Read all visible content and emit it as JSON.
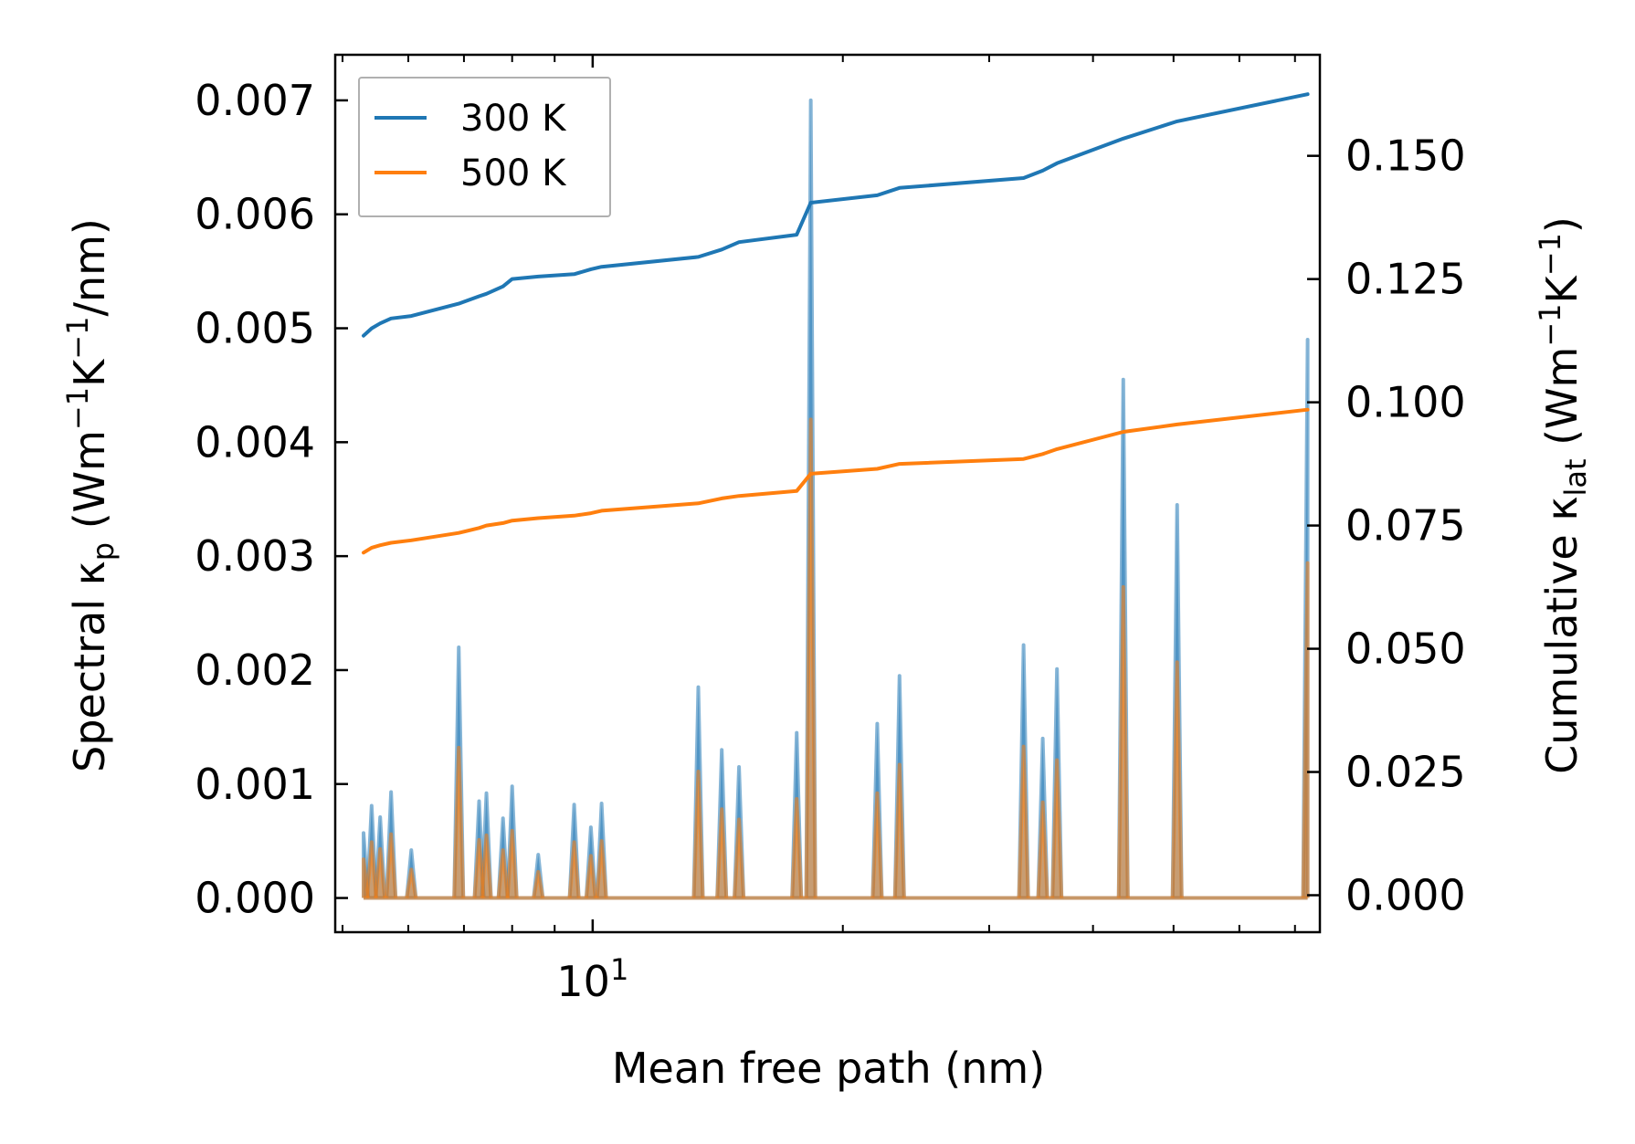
{
  "chart_data": {
    "type": "line",
    "xlabel": "Mean free path (nm)",
    "ylabel_left": {
      "prefix": "Spectral κ",
      "sub": "p",
      "units_prefix": " (Wm",
      "sup1": "−1",
      "mid": "K",
      "sup2": "−1",
      "suffix": "/nm)"
    },
    "ylabel_right": {
      "prefix": "Cumulative κ",
      "sub": "lat",
      "units_prefix": " (Wm",
      "sup1": "−1",
      "mid": "K",
      "sup2": "−1",
      "suffix": ")"
    },
    "xscale": "log",
    "xlim": [
      4.9,
      75
    ],
    "ylim_left": [
      -0.0003,
      0.0074
    ],
    "ylim_right": [
      -0.0075,
      0.1705
    ],
    "x_tick_major": {
      "value": 10,
      "base": "10",
      "exp": "1"
    },
    "x_ticks_minor": [
      5,
      6,
      7,
      8,
      9,
      20,
      30,
      40,
      50,
      60,
      70
    ],
    "y_ticks_left": [
      {
        "value": 0.0,
        "label": "0.000"
      },
      {
        "value": 0.001,
        "label": "0.001"
      },
      {
        "value": 0.002,
        "label": "0.002"
      },
      {
        "value": 0.003,
        "label": "0.003"
      },
      {
        "value": 0.004,
        "label": "0.004"
      },
      {
        "value": 0.005,
        "label": "0.005"
      },
      {
        "value": 0.006,
        "label": "0.006"
      },
      {
        "value": 0.007,
        "label": "0.007"
      }
    ],
    "y_ticks_right": [
      {
        "value": 0.0,
        "label": "0.000"
      },
      {
        "value": 0.025,
        "label": "0.025"
      },
      {
        "value": 0.05,
        "label": "0.050"
      },
      {
        "value": 0.075,
        "label": "0.075"
      },
      {
        "value": 0.1,
        "label": "0.100"
      },
      {
        "value": 0.125,
        "label": "0.125"
      },
      {
        "value": 0.15,
        "label": "0.150"
      }
    ],
    "legend": {
      "position": "upper-left",
      "entries": [
        "300 K",
        "500 K"
      ]
    },
    "series": [
      {
        "name": "300 K",
        "color": "#1f77b4",
        "spectral_peaks": [
          [
            5.3,
            0.00057
          ],
          [
            5.42,
            0.00081
          ],
          [
            5.55,
            0.00071
          ],
          [
            5.72,
            0.00093
          ],
          [
            6.05,
            0.00042
          ],
          [
            6.9,
            0.0022
          ],
          [
            7.3,
            0.00085
          ],
          [
            7.45,
            0.00092
          ],
          [
            7.8,
            0.0007
          ],
          [
            8.0,
            0.00098
          ],
          [
            8.6,
            0.00038
          ],
          [
            9.5,
            0.00082
          ],
          [
            9.95,
            0.00062
          ],
          [
            10.25,
            0.00083
          ],
          [
            13.4,
            0.00185
          ],
          [
            14.3,
            0.0013
          ],
          [
            15.0,
            0.00115
          ],
          [
            17.6,
            0.00145
          ],
          [
            18.3,
            0.007
          ],
          [
            22.0,
            0.00153
          ],
          [
            23.4,
            0.00195
          ],
          [
            33.0,
            0.00222
          ],
          [
            34.8,
            0.0014
          ],
          [
            36.2,
            0.00201
          ],
          [
            43.5,
            0.00455
          ],
          [
            50.5,
            0.00345
          ],
          [
            72.5,
            0.0049
          ]
        ],
        "cumulative": [
          [
            5.3,
            0.1135
          ],
          [
            5.42,
            0.115
          ],
          [
            5.55,
            0.116
          ],
          [
            5.72,
            0.117
          ],
          [
            6.05,
            0.1175
          ],
          [
            6.9,
            0.12
          ],
          [
            7.3,
            0.1215
          ],
          [
            7.45,
            0.122
          ],
          [
            7.8,
            0.1235
          ],
          [
            8.0,
            0.125
          ],
          [
            8.6,
            0.1255
          ],
          [
            9.5,
            0.126
          ],
          [
            9.95,
            0.127
          ],
          [
            10.25,
            0.1275
          ],
          [
            13.4,
            0.1295
          ],
          [
            14.3,
            0.131
          ],
          [
            15.0,
            0.1325
          ],
          [
            17.6,
            0.134
          ],
          [
            18.3,
            0.1405
          ],
          [
            22.0,
            0.142
          ],
          [
            23.4,
            0.1435
          ],
          [
            33.0,
            0.1455
          ],
          [
            34.8,
            0.147
          ],
          [
            36.2,
            0.1485
          ],
          [
            43.5,
            0.1535
          ],
          [
            50.5,
            0.157
          ],
          [
            72.5,
            0.1625
          ]
        ]
      },
      {
        "name": "500 K",
        "color": "#ff7f0e",
        "spectral_peaks": [
          [
            5.3,
            0.00034
          ],
          [
            5.42,
            0.00049
          ],
          [
            5.55,
            0.00043
          ],
          [
            5.72,
            0.00056
          ],
          [
            6.05,
            0.00025
          ],
          [
            6.9,
            0.00132
          ],
          [
            7.3,
            0.00051
          ],
          [
            7.45,
            0.00055
          ],
          [
            7.8,
            0.00042
          ],
          [
            8.0,
            0.00059
          ],
          [
            8.6,
            0.00023
          ],
          [
            9.5,
            0.00049
          ],
          [
            9.95,
            0.00037
          ],
          [
            10.25,
            0.0005
          ],
          [
            13.4,
            0.00111
          ],
          [
            14.3,
            0.00078
          ],
          [
            15.0,
            0.00069
          ],
          [
            17.6,
            0.00087
          ],
          [
            18.3,
            0.0042
          ],
          [
            22.0,
            0.00092
          ],
          [
            23.4,
            0.00117
          ],
          [
            33.0,
            0.00133
          ],
          [
            34.8,
            0.00084
          ],
          [
            36.2,
            0.00121
          ],
          [
            43.5,
            0.00273
          ],
          [
            50.5,
            0.00207
          ],
          [
            72.5,
            0.00294
          ]
        ],
        "cumulative": [
          [
            5.3,
            0.0695
          ],
          [
            5.42,
            0.0705
          ],
          [
            5.55,
            0.071
          ],
          [
            5.72,
            0.0715
          ],
          [
            6.05,
            0.072
          ],
          [
            6.9,
            0.0735
          ],
          [
            7.3,
            0.0745
          ],
          [
            7.45,
            0.075
          ],
          [
            7.8,
            0.0755
          ],
          [
            8.0,
            0.076
          ],
          [
            8.6,
            0.0765
          ],
          [
            9.5,
            0.077
          ],
          [
            9.95,
            0.0775
          ],
          [
            10.25,
            0.078
          ],
          [
            13.4,
            0.0795
          ],
          [
            14.3,
            0.0805
          ],
          [
            15.0,
            0.081
          ],
          [
            17.6,
            0.082
          ],
          [
            18.3,
            0.0855
          ],
          [
            22.0,
            0.0865
          ],
          [
            23.4,
            0.0875
          ],
          [
            33.0,
            0.0885
          ],
          [
            34.8,
            0.0895
          ],
          [
            36.2,
            0.0905
          ],
          [
            43.5,
            0.094
          ],
          [
            50.5,
            0.0955
          ],
          [
            72.5,
            0.0985
          ]
        ]
      }
    ]
  }
}
